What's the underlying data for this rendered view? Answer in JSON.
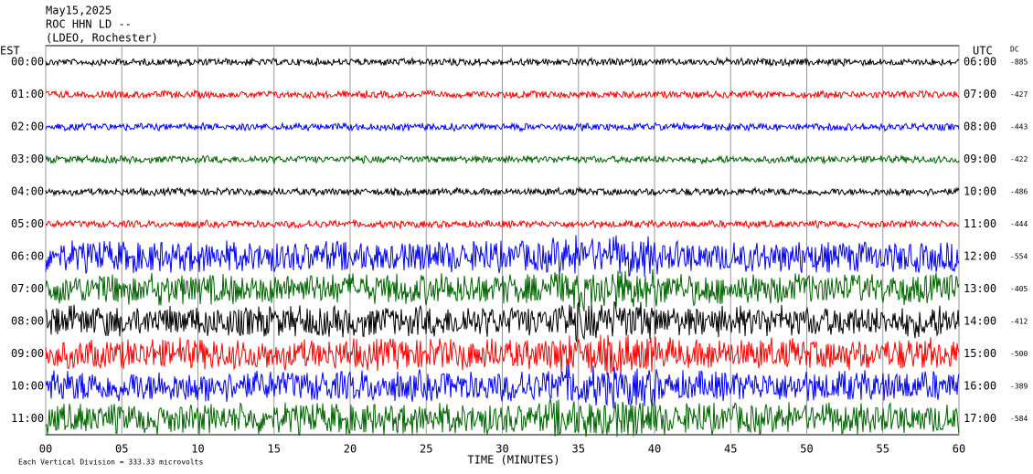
{
  "chart_data": {
    "type": "helicorder",
    "title": [
      "May15,2025",
      "ROC HHN LD --",
      "(LDEO, Rochester)"
    ],
    "left_axis_label": "EST",
    "right_axis_label": "UTC",
    "dc_label": "DC",
    "rows": [
      {
        "est": "00:00",
        "utc": "06:00",
        "dc": -885,
        "color": "#000000"
      },
      {
        "est": "01:00",
        "utc": "07:00",
        "dc": -427,
        "color": "#ff0000"
      },
      {
        "est": "02:00",
        "utc": "08:00",
        "dc": -443,
        "color": "#0000ff"
      },
      {
        "est": "03:00",
        "utc": "09:00",
        "dc": -422,
        "color": "#006400"
      },
      {
        "est": "04:00",
        "utc": "10:00",
        "dc": -486,
        "color": "#000000"
      },
      {
        "est": "05:00",
        "utc": "11:00",
        "dc": -444,
        "color": "#ff0000"
      },
      {
        "est": "06:00",
        "utc": "12:00",
        "dc": -554,
        "color": "#0000ff"
      },
      {
        "est": "07:00",
        "utc": "13:00",
        "dc": -405,
        "color": "#006400"
      },
      {
        "est": "08:00",
        "utc": "14:00",
        "dc": -412,
        "color": "#000000"
      },
      {
        "est": "09:00",
        "utc": "15:00",
        "dc": -500,
        "color": "#ff0000"
      },
      {
        "est": "10:00",
        "utc": "16:00",
        "dc": -389,
        "color": "#0000ff"
      },
      {
        "est": "11:00",
        "utc": "17:00",
        "dc": -584,
        "color": "#006400"
      }
    ],
    "xlabel": "TIME (MINUTES)",
    "xlim": [
      0,
      60
    ],
    "xticks": [
      {
        "value": 0,
        "label": "00"
      },
      {
        "value": 5,
        "label": "05"
      },
      10,
      15,
      20,
      25,
      30,
      35,
      40,
      45,
      50,
      55,
      60
    ],
    "footer": "Each Vertical Division = 333.33 microvolts"
  }
}
